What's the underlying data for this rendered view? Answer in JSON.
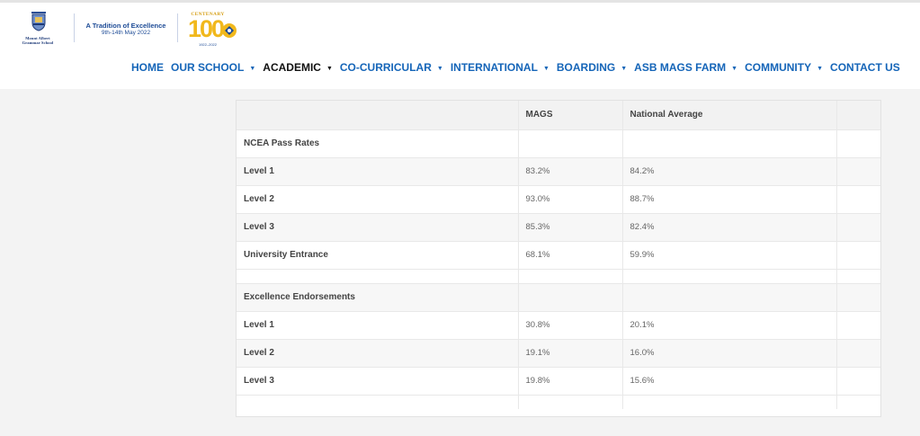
{
  "brand": {
    "school_name_line1": "Mount Albert",
    "school_name_line2": "Grammar School",
    "tagline_title": "A Tradition of Excellence",
    "tagline_dates": "9th-14th May 2022",
    "centenary_label": "CENTENARY",
    "centenary_number": "100",
    "centenary_years": "1922–2022",
    "accent_gold": "#f1b81c",
    "accent_blue": "#1565b8"
  },
  "nav": {
    "items": [
      {
        "label": "HOME",
        "dropdown": false,
        "active": false
      },
      {
        "label": "OUR SCHOOL",
        "dropdown": true,
        "active": false
      },
      {
        "label": "ACADEMIC",
        "dropdown": true,
        "active": true
      },
      {
        "label": "CO-CURRICULAR",
        "dropdown": true,
        "active": false
      },
      {
        "label": "INTERNATIONAL",
        "dropdown": true,
        "active": false
      },
      {
        "label": "BOARDING",
        "dropdown": true,
        "active": false
      },
      {
        "label": "ASB MAGS FARM",
        "dropdown": true,
        "active": false
      },
      {
        "label": "COMMUNITY",
        "dropdown": true,
        "active": false
      },
      {
        "label": "CONTACT US",
        "dropdown": false,
        "active": false
      }
    ],
    "caret_glyph": "▼"
  },
  "results_table": {
    "headers": [
      "",
      "MAGS",
      "National Average",
      ""
    ],
    "rows": [
      {
        "kind": "section",
        "label": "NCEA Pass Rates",
        "mags": "",
        "national": ""
      },
      {
        "kind": "data",
        "label": "Level 1",
        "mags": "83.2%",
        "national": "84.2%"
      },
      {
        "kind": "data",
        "label": "Level 2",
        "mags": "93.0%",
        "national": "88.7%"
      },
      {
        "kind": "data",
        "label": "Level 3",
        "mags": "85.3%",
        "national": "82.4%"
      },
      {
        "kind": "data",
        "label": "University Entrance",
        "mags": "68.1%",
        "national": "59.9%"
      },
      {
        "kind": "spacer",
        "label": "",
        "mags": "",
        "national": ""
      },
      {
        "kind": "section",
        "label": "Excellence Endorsements",
        "mags": "",
        "national": ""
      },
      {
        "kind": "data",
        "label": "Level 1",
        "mags": "30.8%",
        "national": "20.1%"
      },
      {
        "kind": "data",
        "label": "Level 2",
        "mags": "19.1%",
        "national": "16.0%"
      },
      {
        "kind": "data",
        "label": "Level 3",
        "mags": "19.8%",
        "national": "15.6%"
      },
      {
        "kind": "bottom",
        "label": "",
        "mags": "",
        "national": ""
      }
    ]
  }
}
